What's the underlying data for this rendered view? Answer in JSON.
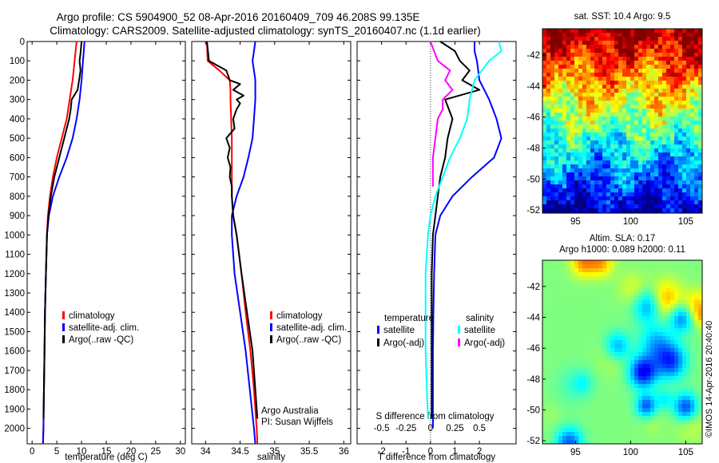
{
  "header": {
    "line1": "Argo profile: CS 5904900_52 08-Apr-2016 20160409_709 46.208S 99.135E",
    "line2": "Climatology: CARS2009. Satellite-adjusted climatology: synTS_20160407.nc (1.1d earlier)"
  },
  "colors": {
    "climatology": "#ff0000",
    "satellite": "#0000ff",
    "argo": "#000000",
    "salinity_satellite": "#00ffff",
    "salinity_argo": "#ff00ff"
  },
  "chart_data": [
    {
      "id": "temperature",
      "type": "line",
      "xlabel": "temperature (deg C)",
      "ylabel": "",
      "xlim": [
        -1,
        31
      ],
      "ylim": [
        2080,
        0
      ],
      "xticks": [
        0,
        5,
        10,
        15,
        20,
        25,
        30
      ],
      "yticks": [
        0,
        100,
        200,
        300,
        400,
        500,
        600,
        700,
        800,
        900,
        1000,
        1100,
        1200,
        1300,
        1400,
        1500,
        1600,
        1700,
        1800,
        1900,
        2000
      ],
      "legend": [
        "climatology",
        "satellite-adj. clim.",
        "Argo(..raw -QC)"
      ],
      "legend_placement": "lower-center",
      "series": [
        {
          "name": "climatology",
          "color": "#ff0000",
          "y": [
            0,
            100,
            200,
            300,
            400,
            500,
            600,
            700,
            800,
            900,
            1000,
            1200,
            1400,
            1600,
            1800,
            2000,
            2080
          ],
          "x": [
            9.0,
            8.6,
            8.2,
            7.6,
            7.0,
            6.0,
            5.0,
            4.2,
            3.6,
            3.2,
            3.0,
            2.8,
            2.6,
            2.5,
            2.4,
            2.3,
            2.2
          ]
        },
        {
          "name": "satellite-adj. clim.",
          "color": "#0000ff",
          "y": [
            0,
            100,
            200,
            300,
            400,
            500,
            600,
            700,
            800,
            900,
            1000,
            1200,
            1400,
            1600,
            1800,
            2000,
            2080
          ],
          "x": [
            10.6,
            10.3,
            10.0,
            9.6,
            9.0,
            8.2,
            7.0,
            5.5,
            4.2,
            3.4,
            3.0,
            2.8,
            2.6,
            2.5,
            2.4,
            2.3,
            2.2
          ]
        },
        {
          "name": "Argo(..raw -QC)",
          "color": "#000000",
          "y": [
            0,
            60,
            100,
            150,
            200,
            250,
            300,
            350,
            400,
            450,
            500,
            550,
            600,
            700,
            800,
            900,
            1000,
            1200,
            1400,
            1600,
            1800,
            1950
          ],
          "x": [
            10.0,
            9.8,
            9.6,
            9.8,
            9.5,
            9.2,
            8.0,
            7.8,
            7.5,
            7.0,
            6.5,
            6.0,
            5.5,
            4.5,
            3.8,
            3.3,
            3.0,
            2.8,
            2.6,
            2.5,
            2.4,
            2.3
          ]
        }
      ]
    },
    {
      "id": "salinity",
      "type": "line",
      "xlabel": "salinity",
      "ylabel": "",
      "xlim": [
        33.8,
        36.1
      ],
      "ylim": [
        2080,
        0
      ],
      "xticks": [
        34,
        34.5,
        35,
        35.5,
        36
      ],
      "legend": [
        "climatology",
        "satellite-adj. clim.",
        "Argo(..raw -QC)"
      ],
      "legend_placement": "lower-right",
      "annotation": [
        "Argo Australia",
        "PI: Susan Wijffels"
      ],
      "series": [
        {
          "name": "climatology",
          "color": "#ff0000",
          "y": [
            0,
            100,
            150,
            200,
            250,
            300,
            400,
            500,
            600,
            700,
            800,
            900,
            1000,
            1200,
            1400,
            1600,
            1800,
            2000,
            2080
          ],
          "x": [
            34.02,
            34.03,
            34.2,
            34.35,
            34.36,
            34.36,
            34.37,
            34.38,
            34.38,
            34.38,
            34.38,
            34.4,
            34.45,
            34.52,
            34.58,
            34.65,
            34.7,
            34.74,
            34.75
          ]
        },
        {
          "name": "satellite-adj. clim.",
          "color": "#0000ff",
          "y": [
            0,
            50,
            100,
            150,
            200,
            300,
            400,
            500,
            600,
            700,
            800,
            900,
            1000,
            1200,
            1400,
            1600,
            1800,
            2000,
            2080
          ],
          "x": [
            34.72,
            34.7,
            34.68,
            34.7,
            34.72,
            34.72,
            34.7,
            34.68,
            34.62,
            34.55,
            34.45,
            34.38,
            34.38,
            34.42,
            34.5,
            34.58,
            34.64,
            34.7,
            34.72
          ]
        },
        {
          "name": "Argo(..raw -QC)",
          "color": "#000000",
          "y": [
            0,
            100,
            150,
            200,
            220,
            250,
            280,
            300,
            320,
            350,
            400,
            450,
            500,
            550,
            600,
            650,
            700,
            750,
            800,
            900,
            1000,
            1200,
            1400,
            1600,
            1800,
            1950
          ],
          "x": [
            34.02,
            34.05,
            34.3,
            34.35,
            34.5,
            34.4,
            34.55,
            34.45,
            34.5,
            34.45,
            34.4,
            34.42,
            34.3,
            34.35,
            34.32,
            34.36,
            34.35,
            34.38,
            34.38,
            34.4,
            34.45,
            34.52,
            34.6,
            34.68,
            34.72,
            34.75
          ]
        }
      ]
    },
    {
      "id": "difference",
      "type": "line",
      "xlabel": "T difference from climatology",
      "x2label": "S difference from climatology",
      "ylabel": "",
      "xlim": [
        -3,
        3.5
      ],
      "ylim": [
        2080,
        0
      ],
      "xticks": [
        -2,
        -1,
        0,
        1,
        2
      ],
      "x2ticks": [
        {
          "label": "-0.5",
          "pos": -2
        },
        {
          "label": "-0.25",
          "pos": -1
        },
        {
          "label": "0",
          "pos": 0
        },
        {
          "label": "0.25",
          "pos": 1
        },
        {
          "label": "0.5",
          "pos": 2
        }
      ],
      "legend_titles": [
        "temperature",
        "salinity"
      ],
      "legend": [
        "satellite",
        "Argo(-adj)",
        "satellite",
        "Argo(-adj)"
      ],
      "legend_placement": "lower",
      "series": [
        {
          "name": "satellite",
          "group": "temperature",
          "color": "#0000ff",
          "y": [
            0,
            50,
            100,
            200,
            300,
            400,
            500,
            600,
            700,
            800,
            900,
            1000,
            1200,
            1400,
            1600,
            1800,
            2000
          ],
          "x": [
            1.8,
            1.8,
            1.9,
            2.0,
            2.4,
            2.7,
            2.9,
            2.6,
            1.7,
            0.9,
            0.4,
            0.2,
            0.15,
            0.12,
            0.1,
            0.1,
            0.1
          ]
        },
        {
          "name": "Argo(-adj)",
          "group": "temperature",
          "color": "#000000",
          "y": [
            0,
            50,
            100,
            150,
            200,
            250,
            300,
            400,
            500,
            600,
            700,
            800,
            900,
            1000,
            1200,
            1400,
            1600,
            1800,
            1950
          ],
          "x": [
            0.4,
            1.0,
            1.2,
            1.6,
            1.3,
            2.0,
            0.6,
            0.9,
            0.7,
            0.6,
            0.4,
            0.3,
            0.2,
            0.1,
            0.05,
            0.05,
            0.05,
            0.05,
            0.05
          ]
        },
        {
          "name": "satellite",
          "group": "salinity",
          "color": "#00ffff",
          "y": [
            0,
            50,
            100,
            200,
            300,
            400,
            500,
            600,
            700,
            800,
            900,
            1000,
            1200,
            1400,
            1600,
            1800,
            1950
          ],
          "x": [
            2.8,
            2.9,
            2.4,
            1.8,
            1.6,
            1.5,
            1.2,
            0.8,
            0.5,
            0.2,
            0.0,
            -0.1,
            -0.2,
            -0.2,
            -0.2,
            -0.15,
            -0.1
          ]
        },
        {
          "name": "Argo(-adj)",
          "group": "salinity",
          "color": "#ff00ff",
          "y": [
            0,
            100,
            150,
            200,
            250,
            300,
            350,
            400,
            500,
            600,
            700,
            750
          ],
          "x": [
            0.0,
            0.3,
            0.8,
            0.6,
            0.9,
            0.5,
            0.5,
            0.3,
            0.2,
            0.1,
            0.1,
            0.1
          ]
        }
      ]
    },
    {
      "id": "sst-map",
      "type": "heatmap",
      "title": "sat. SST: 10.4  Argo: 9.5",
      "xlim": [
        92,
        106.5
      ],
      "ylim": [
        -52.2,
        -40.3
      ],
      "xticks": [
        95,
        100,
        105
      ],
      "yticks": [
        -42,
        -44,
        -46,
        -48,
        -50,
        -52
      ]
    },
    {
      "id": "sla-map",
      "type": "heatmap",
      "title": [
        "Altim. SLA: 0.17",
        "Argo h1000: 0.089 h2000: 0.11"
      ],
      "xlim": [
        92,
        106.5
      ],
      "ylim": [
        -52.2,
        -40.3
      ],
      "xticks": [
        95,
        100,
        105
      ],
      "yticks": [
        -42,
        -44,
        -46,
        -48,
        -50,
        -52
      ]
    }
  ],
  "side_credit": "©IMOS 14-Apr-2016 20:40:40"
}
